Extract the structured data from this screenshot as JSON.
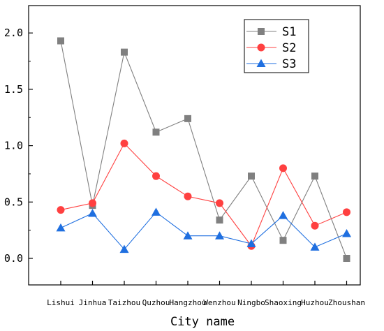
{
  "chart_data": {
    "type": "line",
    "title": "",
    "xlabel": "City name",
    "ylabel": "",
    "categories": [
      "Lishui",
      "Jinhua",
      "Taizhou",
      "Quzhou",
      "Hangzhou",
      "Wenzhou",
      "Ningbo",
      "Shaoxing",
      "Huzhou",
      "Zhoushan"
    ],
    "ylim": [
      -0.25,
      2.25
    ],
    "yticks": [
      "0.0",
      "0.5",
      "1.0",
      "1.5",
      "2.0"
    ],
    "grid": false,
    "legend_position": "top-right",
    "series": [
      {
        "name": "S1",
        "color": "#808080",
        "marker": "square",
        "values": [
          1.93,
          0.47,
          1.83,
          1.12,
          1.24,
          0.34,
          0.73,
          0.16,
          0.73,
          0.0
        ]
      },
      {
        "name": "S2",
        "color": "#ff4040",
        "marker": "circle",
        "values": [
          0.43,
          0.49,
          1.02,
          0.73,
          0.55,
          0.49,
          0.11,
          0.8,
          0.29,
          0.41
        ]
      },
      {
        "name": "S3",
        "color": "#1f6fe0",
        "marker": "triangle",
        "values": [
          0.27,
          0.4,
          0.08,
          0.41,
          0.2,
          0.2,
          0.13,
          0.38,
          0.1,
          0.22
        ]
      }
    ]
  }
}
